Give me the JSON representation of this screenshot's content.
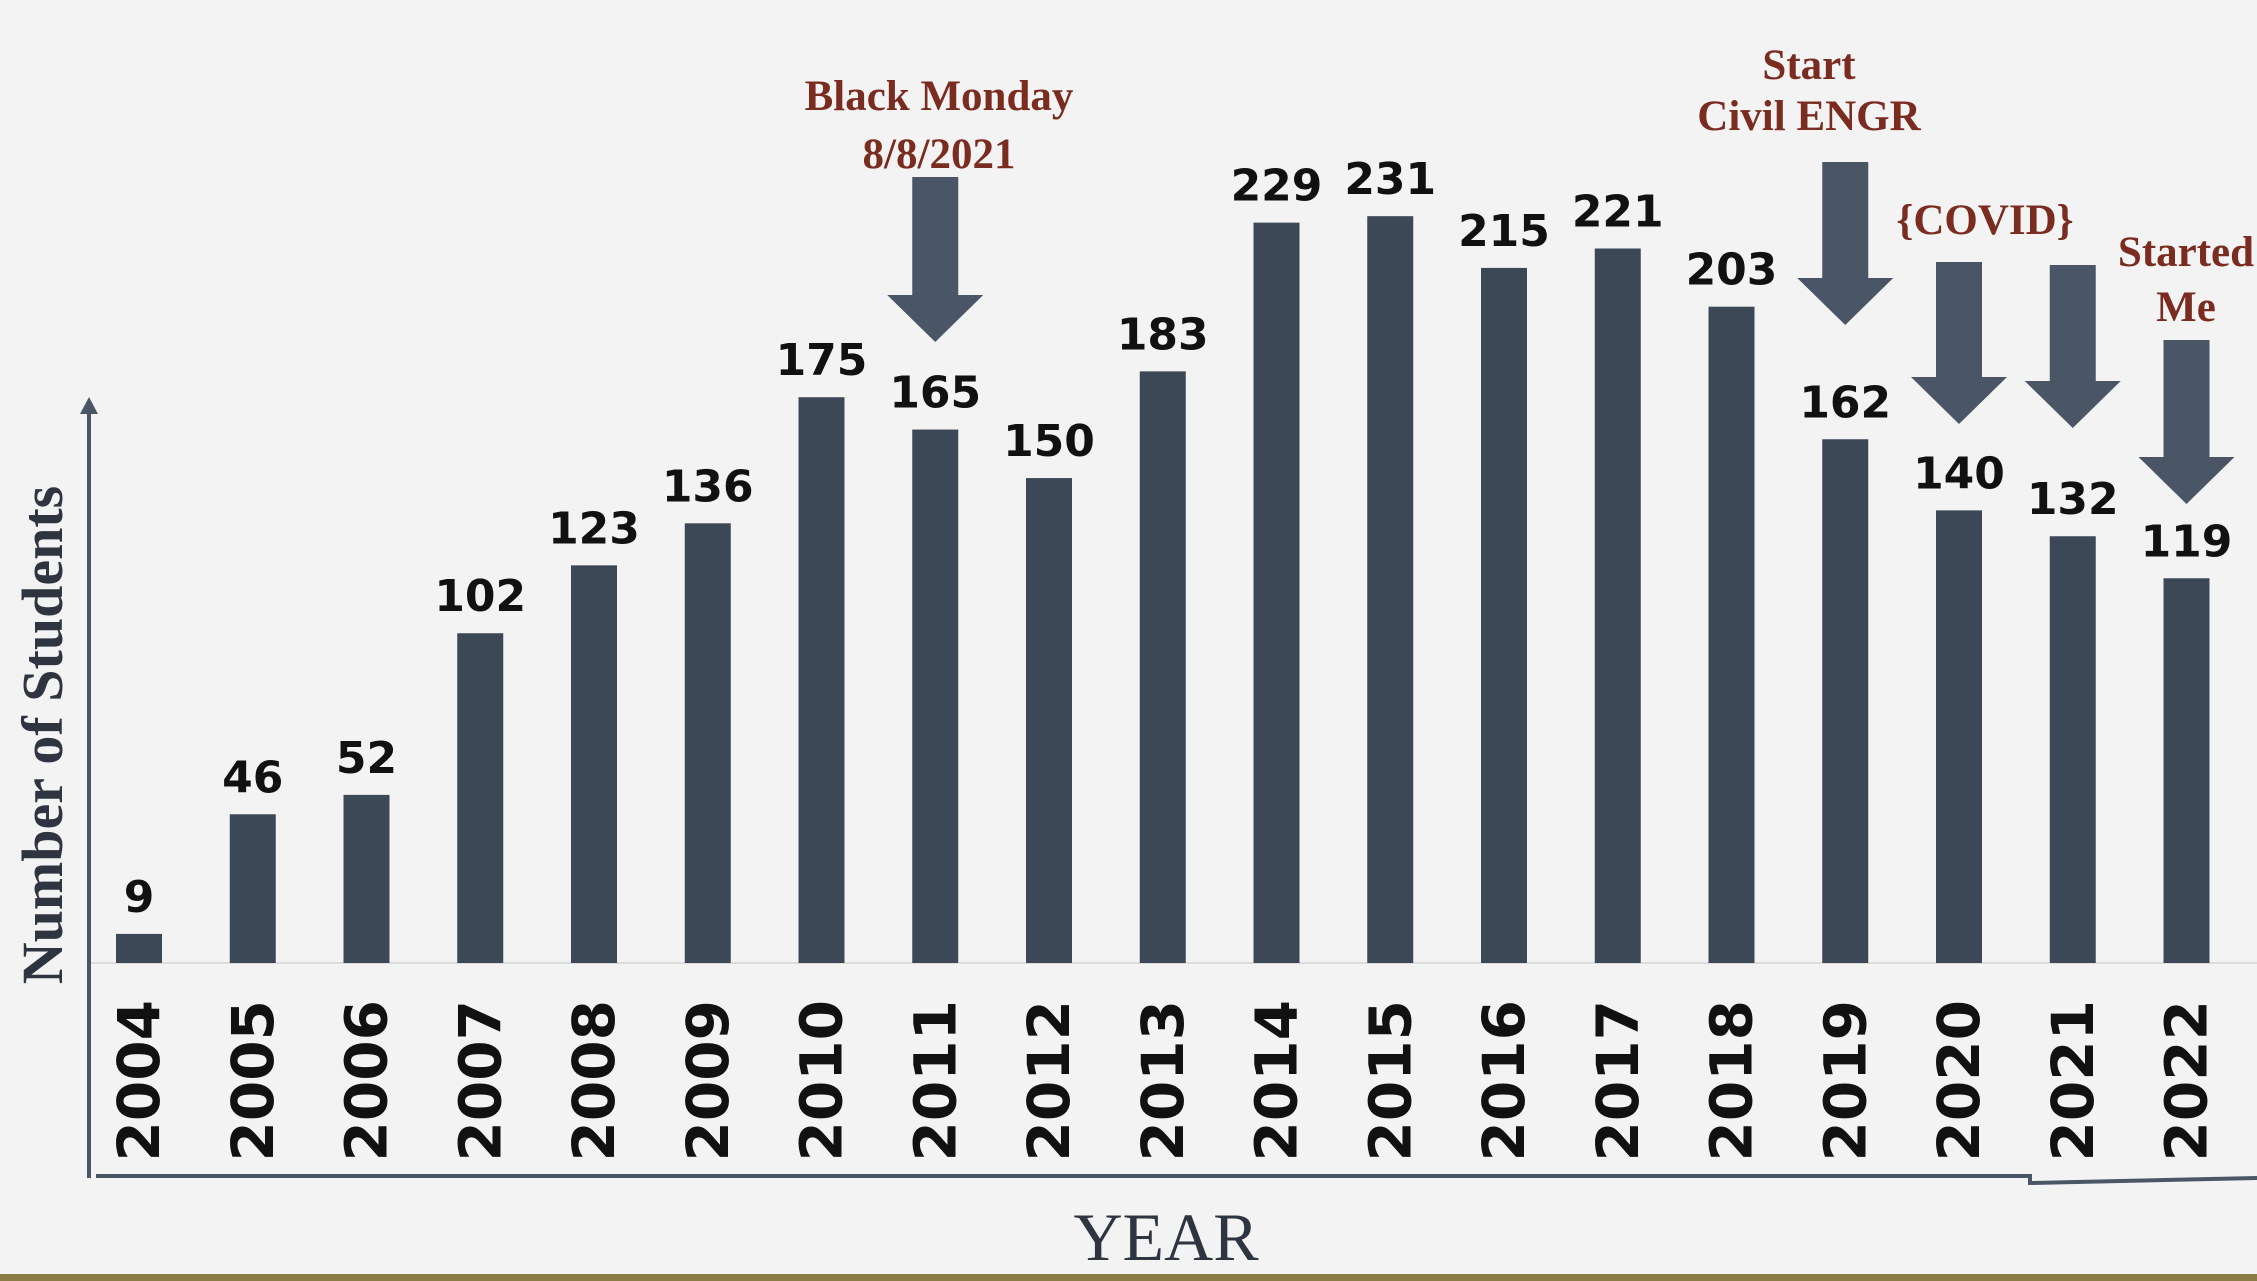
{
  "chart_data": {
    "type": "bar",
    "categories": [
      "2004",
      "2005",
      "2006",
      "2007",
      "2008",
      "2009",
      "2010",
      "2011",
      "2012",
      "2013",
      "2014",
      "2015",
      "2016",
      "2017",
      "2018",
      "2019",
      "2020",
      "2021",
      "2022"
    ],
    "values": [
      9,
      46,
      52,
      102,
      123,
      136,
      175,
      165,
      150,
      183,
      229,
      231,
      215,
      221,
      203,
      162,
      140,
      132,
      119
    ],
    "xlabel": "YEAR",
    "ylabel": "Number of Students",
    "ylim": [
      0,
      240
    ],
    "grid": false,
    "annotations": [
      {
        "lines": [
          "Black Monday",
          "8/8/2021"
        ],
        "category": "2011"
      },
      {
        "lines": [
          "Start",
          "Civil ENGR"
        ],
        "category": "2019"
      },
      {
        "lines": [
          "{COVID}"
        ],
        "category": [
          "2020",
          "2021"
        ]
      },
      {
        "lines": [
          "Started",
          "Me"
        ],
        "category": "2022"
      }
    ]
  },
  "colors": {
    "background": "#f3f3f3",
    "bar": "#3d4857",
    "arrow": "#4a5666",
    "annotation": "#7a2c20",
    "axis": "#4a5666",
    "bottom_rule": "#8a7a44"
  }
}
